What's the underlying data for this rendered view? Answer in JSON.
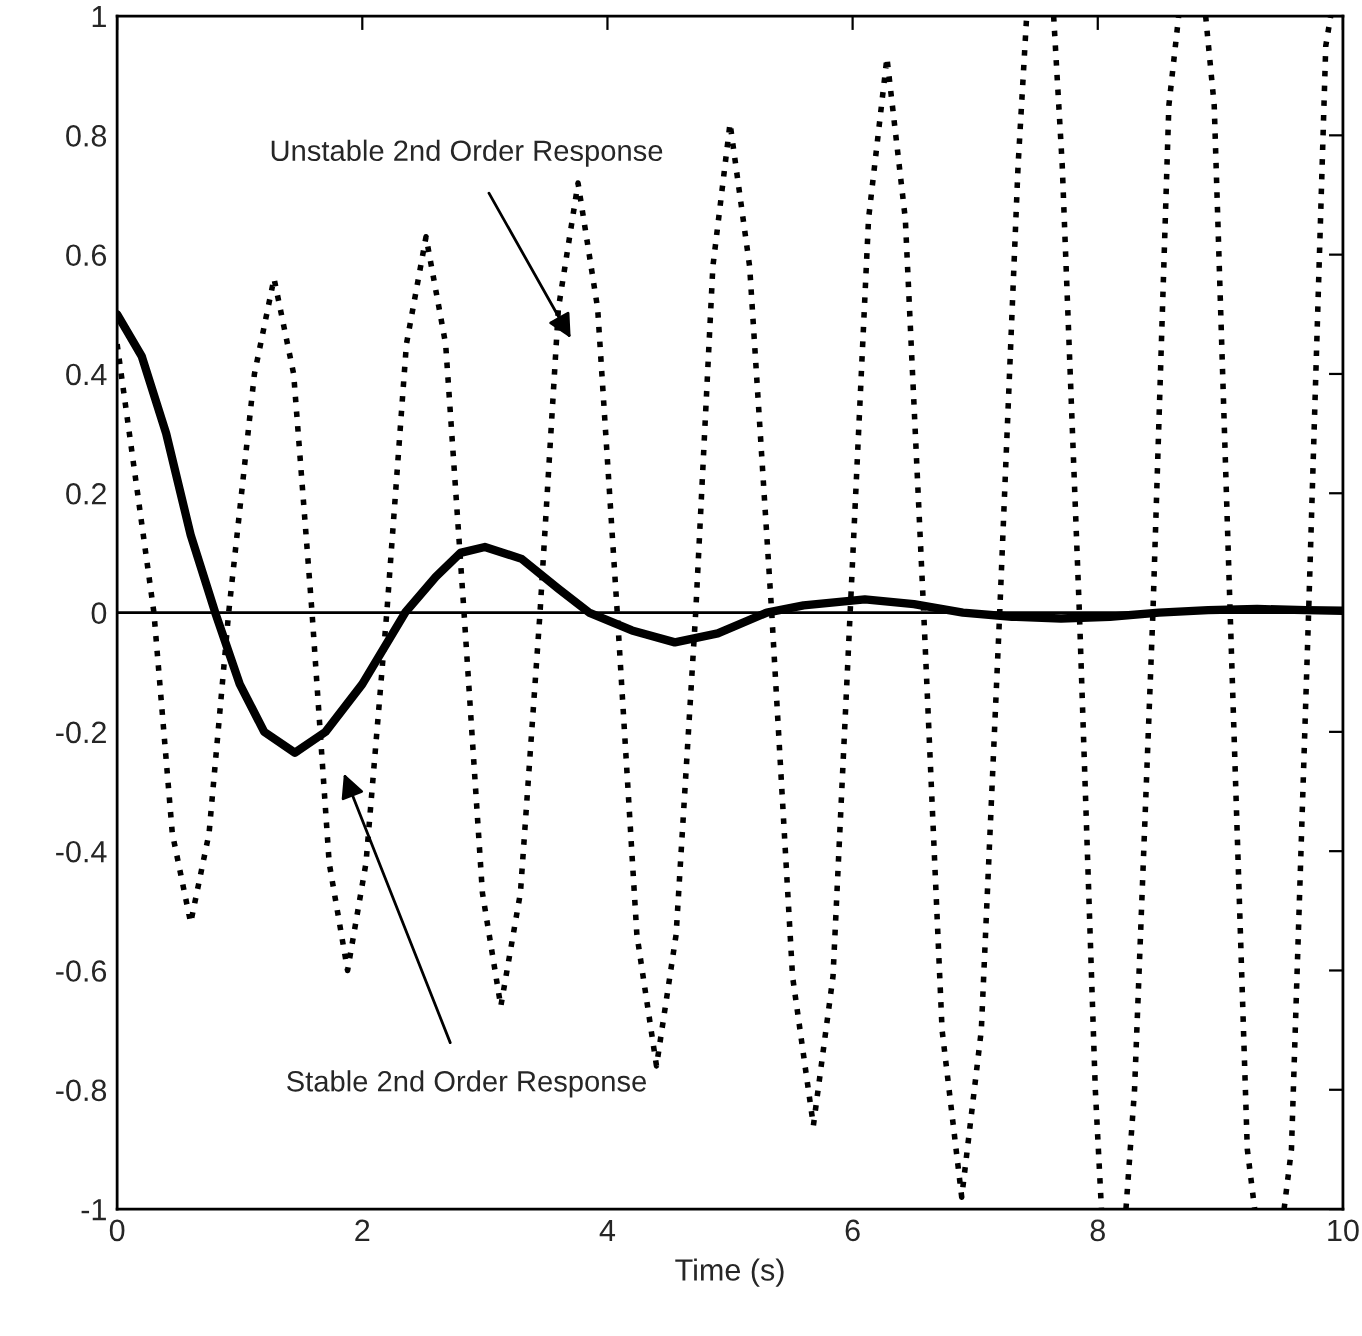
{
  "chart_data": {
    "type": "line",
    "xlabel": "Time (s)",
    "xlim": [
      0,
      10
    ],
    "xticks": [
      0,
      2,
      4,
      6,
      8,
      10
    ],
    "ylim": [
      -1,
      1
    ],
    "yticks": [
      -1,
      -0.8,
      -0.6,
      -0.4,
      -0.2,
      0,
      0.2,
      0.4,
      0.6,
      0.8,
      1
    ],
    "grid": false,
    "legend": false,
    "series": [
      {
        "color": "#000000",
        "line_style": "dotted",
        "x": [
          0,
          0.3,
          0.45,
          0.6,
          0.75,
          0.91,
          1.12,
          1.28,
          1.44,
          1.59,
          1.73,
          1.88,
          2.03,
          2.2,
          2.36,
          2.52,
          2.68,
          2.83,
          2.98,
          3.13,
          3.29,
          3.45,
          3.6,
          3.76,
          3.92,
          4.08,
          4.24,
          4.4,
          4.56,
          4.72,
          4.86,
          5.0,
          5.16,
          5.34,
          5.51,
          5.68,
          5.84,
          5.98,
          6.13,
          6.28,
          6.43,
          6.58,
          6.73,
          6.89,
          7.05,
          7.2,
          7.35,
          7.42,
          7.53,
          7.64,
          7.71,
          7.85,
          7.98,
          8.03,
          8.13,
          8.23,
          8.3,
          8.45,
          8.58,
          8.66,
          8.77,
          8.88,
          8.95,
          9.08,
          9.22,
          9.28,
          9.4,
          9.52,
          9.58,
          9.72,
          9.86,
          9.9
        ],
        "values": [
          0.45,
          0,
          -0.37,
          -0.52,
          -0.37,
          0,
          0.4,
          0.56,
          0.4,
          0,
          -0.42,
          -0.6,
          -0.42,
          0,
          0.45,
          0.63,
          0.45,
          0,
          -0.47,
          -0.66,
          -0.47,
          0,
          0.51,
          0.72,
          0.51,
          0,
          -0.54,
          -0.76,
          -0.54,
          0,
          0.58,
          0.82,
          0.58,
          0,
          -0.61,
          -0.86,
          -0.61,
          0,
          0.66,
          0.93,
          0.66,
          0,
          -0.7,
          -0.98,
          -0.7,
          0,
          0.75,
          1.0,
          null,
          1.0,
          0.75,
          0,
          -0.8,
          -1.0,
          null,
          -1.0,
          -0.8,
          0,
          0.85,
          1.0,
          null,
          1.0,
          0.85,
          0,
          -0.9,
          -1.0,
          null,
          -1.0,
          -0.9,
          0,
          0.95,
          1.0
        ]
      },
      {
        "color": "#000000",
        "line_style": "solid",
        "x": [
          0,
          0.2,
          0.4,
          0.6,
          0.8,
          1.0,
          1.2,
          1.45,
          1.7,
          2.0,
          2.35,
          2.6,
          2.8,
          3.0,
          3.3,
          3.6,
          3.85,
          4.2,
          4.55,
          4.9,
          5.3,
          5.6,
          6.1,
          6.5,
          6.9,
          7.3,
          7.7,
          8.1,
          8.5,
          8.9,
          9.3,
          9.7,
          10
        ],
        "values": [
          0.5,
          0.43,
          0.3,
          0.13,
          0,
          -0.12,
          -0.2,
          -0.235,
          -0.2,
          -0.12,
          0,
          0.06,
          0.1,
          0.11,
          0.09,
          0.04,
          0,
          -0.03,
          -0.05,
          -0.035,
          0,
          0.012,
          0.022,
          0.014,
          0,
          -0.007,
          -0.01,
          -0.007,
          0,
          0.004,
          0.006,
          0.004,
          0.003
        ]
      }
    ],
    "ref_lines": [
      {
        "axis": "y",
        "value": 0,
        "color": "#000000"
      }
    ],
    "annotations": [
      "Unstable 2nd Order Response",
      "Stable 2nd Order Response"
    ]
  }
}
